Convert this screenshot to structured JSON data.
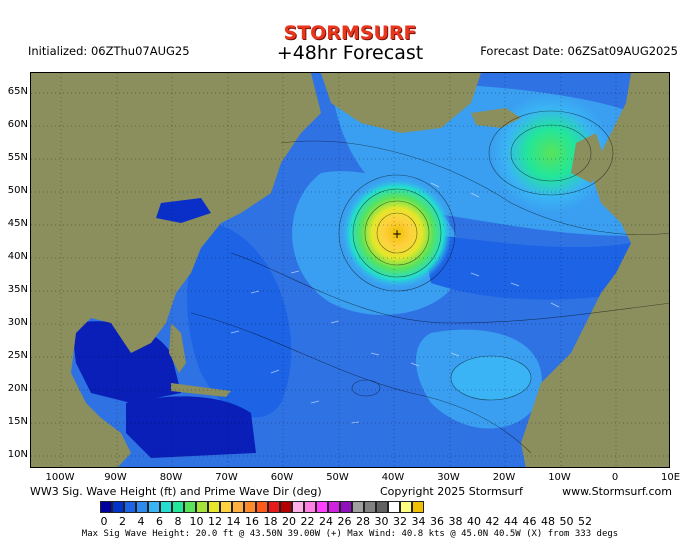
{
  "header": {
    "logo": "STORMSURF",
    "title": "+48hr Forecast",
    "initialized": "Initialized: 06ZThu07AUG25",
    "forecast_date": "Forecast Date: 06ZSat09AUG2025"
  },
  "axes": {
    "lat_labels": [
      "65N",
      "60N",
      "55N",
      "50N",
      "45N",
      "40N",
      "35N",
      "30N",
      "25N",
      "20N",
      "15N",
      "10N"
    ],
    "lon_labels": [
      "100W",
      "90W",
      "80W",
      "70W",
      "60W",
      "50W",
      "40W",
      "30W",
      "20W",
      "10W",
      "0",
      "10E"
    ]
  },
  "footer": {
    "caption": "WW3 Sig. Wave Height (ft) and Prime Wave Dir (deg)",
    "copyright": "Copyright 2025 Stormsurf",
    "website": "www.Stormsurf.com",
    "stats": "Max Sig Wave Height: 20.0 ft @ 43.50N 39.00W (+)  Max Wind: 40.8 kts @ 45.0N 40.5W (X) from 333 degs"
  },
  "scale": {
    "labels": [
      "0",
      "2",
      "4",
      "6",
      "8",
      "10",
      "12",
      "14",
      "16",
      "18",
      "20",
      "22",
      "24",
      "26",
      "28",
      "30",
      "32",
      "34",
      "36",
      "38",
      "40",
      "42",
      "44",
      "46",
      "48",
      "50",
      "52"
    ],
    "colors": [
      "#0000a0",
      "#0033cc",
      "#1d63e6",
      "#2f8af0",
      "#3ab4f5",
      "#22ddd0",
      "#22e69a",
      "#5ae35a",
      "#a6e33a",
      "#e6e62a",
      "#ffd040",
      "#ffb040",
      "#ff8a2a",
      "#ff5a1a",
      "#e61a1a",
      "#b40000",
      "#ffb0e6",
      "#ff80e0",
      "#ff40ff",
      "#d020e0",
      "#9010c0",
      "#a0a0a0",
      "#808080",
      "#606060",
      "#ffffff",
      "#ffff80",
      "#f0c000"
    ]
  },
  "map": {
    "land_color": "#8b8f5e",
    "ocean_base_color": "#2f6fe0",
    "max_marker": "+"
  }
}
